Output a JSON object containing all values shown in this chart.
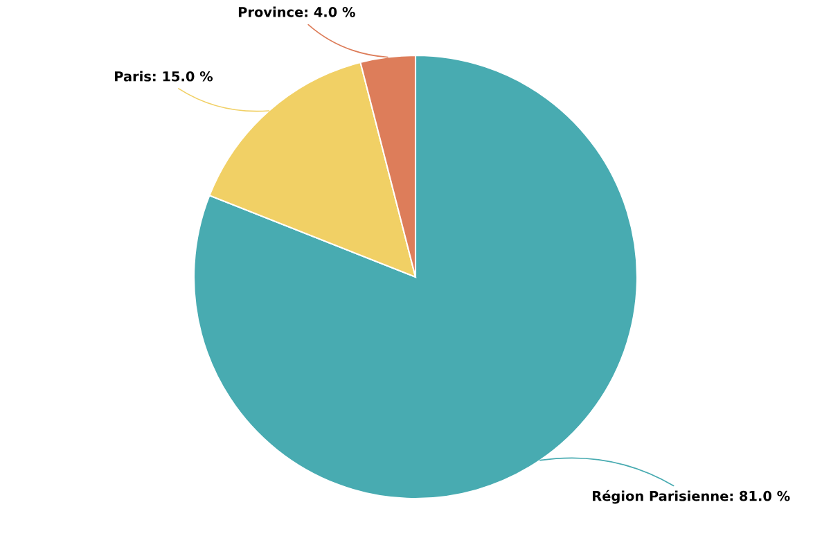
{
  "chart_data": {
    "type": "pie",
    "categories": [
      "Région Parisienne",
      "Paris",
      "Province"
    ],
    "values": [
      81,
      15,
      4
    ],
    "colors": [
      "#48abb1",
      "#f1d065",
      "#dd7d5a"
    ],
    "value_labels": [
      "81.0 %",
      "15.0 %",
      "4.0 %"
    ]
  }
}
